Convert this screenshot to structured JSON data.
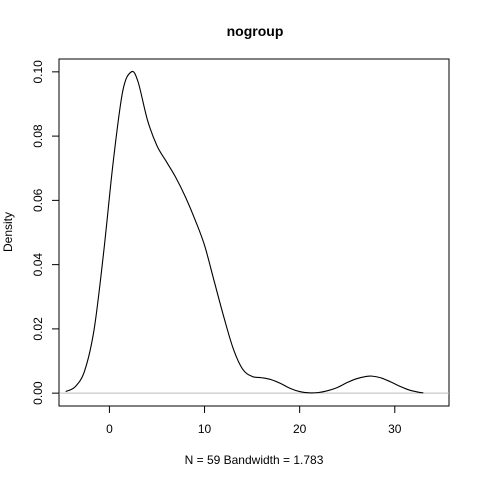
{
  "chart_data": {
    "type": "line",
    "title": "nogroup",
    "xlabel": "N = 59   Bandwidth = 1.783",
    "ylabel": "Density",
    "xlim": [
      -5.3,
      35.7
    ],
    "ylim": [
      -0.004,
      0.104
    ],
    "x_ticks": [
      0,
      10,
      20,
      30
    ],
    "x_tick_labels": [
      "0",
      "10",
      "20",
      "30"
    ],
    "y_ticks": [
      0.0,
      0.02,
      0.04,
      0.06,
      0.08,
      0.1
    ],
    "y_tick_labels": [
      "0.00",
      "0.02",
      "0.04",
      "0.06",
      "0.08",
      "0.10"
    ],
    "grid": false,
    "baseline": 0,
    "series": [
      {
        "color": "#000000",
        "x": [
          -4.6,
          -3.6,
          -2.6,
          -1.6,
          -0.6,
          0.4,
          1.4,
          2.3,
          3.0,
          4.0,
          5.0,
          6.0,
          7.0,
          8.0,
          9.0,
          10.0,
          11.0,
          12.0,
          13.0,
          14.0,
          15.0,
          16.0,
          17.0,
          18.0,
          19.0,
          20.0,
          21.0,
          22.0,
          23.0,
          24.0,
          25.0,
          26.0,
          27.0,
          27.6,
          28.5,
          29.5,
          30.5,
          31.5,
          32.5,
          33.0
        ],
        "y": [
          0.0005,
          0.002,
          0.007,
          0.02,
          0.044,
          0.072,
          0.094,
          0.1,
          0.097,
          0.085,
          0.077,
          0.072,
          0.067,
          0.061,
          0.054,
          0.046,
          0.035,
          0.024,
          0.014,
          0.0075,
          0.0052,
          0.0048,
          0.0042,
          0.003,
          0.0015,
          0.0005,
          0.0001,
          0.0002,
          0.0008,
          0.0018,
          0.0033,
          0.0045,
          0.0052,
          0.0053,
          0.0048,
          0.0036,
          0.0022,
          0.001,
          0.0003,
          0.0001
        ]
      }
    ]
  }
}
